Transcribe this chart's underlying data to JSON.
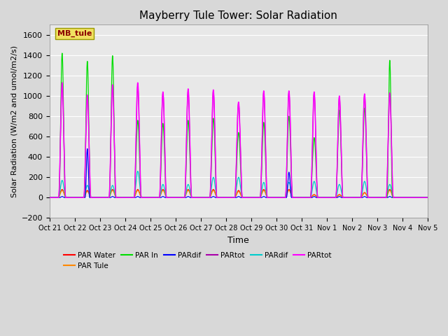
{
  "title": "Mayberry Tule Tower: Solar Radiation",
  "ylabel": "Solar Radiation (W/m2 and umol/m2/s)",
  "xlabel": "Time",
  "ylim": [
    -200,
    1700
  ],
  "yticks": [
    -200,
    0,
    200,
    400,
    600,
    800,
    1000,
    1200,
    1400,
    1600
  ],
  "fig_bg_color": "#d8d8d8",
  "plot_bg_color": "#e8e8e8",
  "mb_tule_label": "MB_tule",
  "mb_tule_box_color": "#f0e060",
  "mb_tule_text_color": "#8B0000",
  "legend_entries": [
    "PAR Water",
    "PAR Tule",
    "PAR In",
    "PARdif",
    "PARtot",
    "PARdif",
    "PARtot"
  ],
  "legend_colors": [
    "#ff0000",
    "#ff8800",
    "#00dd00",
    "#0000ff",
    "#aa00aa",
    "#00cccc",
    "#ff00ff"
  ],
  "series_colors": {
    "PAR_water": "#ff0000",
    "PAR_tule": "#ff8800",
    "PAR_in": "#00dd00",
    "PARdif1": "#0000ff",
    "PARtot1": "#aa00aa",
    "PARdif2": "#00cccc",
    "PARtot2": "#ff00ff"
  },
  "xtick_labels": [
    "Oct 21",
    "Oct 22",
    "Oct 23",
    "Oct 24",
    "Oct 25",
    "Oct 26",
    "Oct 27",
    "Oct 28",
    "Oct 29",
    "Oct 30",
    "Oct 31",
    "Nov 1",
    "Nov 2",
    "Nov 3",
    "Nov 4",
    "Nov 5"
  ],
  "n_days": 15,
  "pts_per_day": 288,
  "day_params": {
    "PAR_in": {
      "peaks": [
        1420,
        1340,
        1395,
        760,
        730,
        760,
        780,
        640,
        740,
        800,
        590,
        860,
        880,
        1350,
        0
      ],
      "widths": [
        0.25,
        0.25,
        0.25,
        0.28,
        0.28,
        0.28,
        0.28,
        0.3,
        0.28,
        0.28,
        0.3,
        0.28,
        0.28,
        0.22,
        0.28
      ]
    },
    "PARtot2": {
      "peaks": [
        1130,
        1010,
        1110,
        1130,
        1040,
        1070,
        1060,
        940,
        1050,
        1050,
        1040,
        1000,
        1020,
        1030,
        0
      ],
      "widths": [
        0.28,
        0.28,
        0.28,
        0.28,
        0.28,
        0.28,
        0.28,
        0.3,
        0.28,
        0.28,
        0.28,
        0.28,
        0.28,
        0.28,
        0.28
      ]
    },
    "PARtot1": {
      "peaks": [
        1100,
        1000,
        1100,
        1100,
        1030,
        1050,
        1050,
        930,
        1040,
        1040,
        1030,
        990,
        1010,
        1020,
        0
      ],
      "widths": [
        0.28,
        0.28,
        0.28,
        0.28,
        0.28,
        0.28,
        0.28,
        0.3,
        0.28,
        0.28,
        0.28,
        0.28,
        0.28,
        0.28,
        0.28
      ]
    },
    "PARdif2": {
      "peaks": [
        170,
        120,
        120,
        260,
        130,
        130,
        200,
        200,
        150,
        150,
        160,
        130,
        160,
        130,
        0
      ],
      "widths": [
        0.3,
        0.3,
        0.3,
        0.3,
        0.3,
        0.3,
        0.3,
        0.32,
        0.3,
        0.3,
        0.3,
        0.3,
        0.3,
        0.3,
        0.3
      ]
    },
    "PARdif1": {
      "peaks": [
        10,
        480,
        10,
        10,
        10,
        10,
        10,
        10,
        10,
        250,
        10,
        10,
        10,
        10,
        0
      ],
      "widths": [
        0.2,
        0.18,
        0.2,
        0.2,
        0.2,
        0.2,
        0.2,
        0.2,
        0.2,
        0.2,
        0.2,
        0.2,
        0.2,
        0.2,
        0.2
      ]
    },
    "PAR_water": {
      "peaks": [
        80,
        70,
        80,
        80,
        80,
        80,
        80,
        70,
        80,
        80,
        30,
        30,
        50,
        80,
        0
      ],
      "widths": [
        0.32,
        0.32,
        0.32,
        0.32,
        0.32,
        0.32,
        0.32,
        0.32,
        0.32,
        0.32,
        0.32,
        0.32,
        0.32,
        0.32,
        0.32
      ]
    },
    "PAR_tule": {
      "peaks": [
        70,
        60,
        70,
        70,
        70,
        70,
        70,
        60,
        70,
        70,
        25,
        25,
        45,
        70,
        0
      ],
      "widths": [
        0.32,
        0.32,
        0.32,
        0.32,
        0.32,
        0.32,
        0.32,
        0.32,
        0.32,
        0.32,
        0.32,
        0.32,
        0.32,
        0.32,
        0.32
      ]
    }
  }
}
